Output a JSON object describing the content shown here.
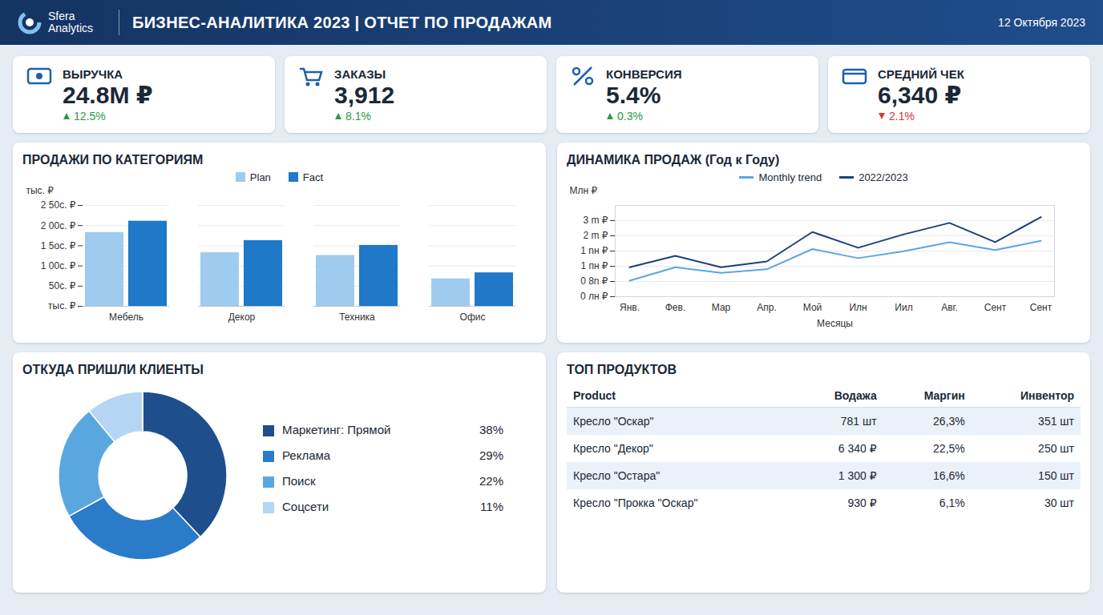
{
  "header": {
    "brand": "Sfera Analytics",
    "title": "БИЗНЕС-АНАЛИТИКА 2023 | ОТЧЕТ ПО ПРОДАЖАМ",
    "date": "12 Октября 2023"
  },
  "kpis": [
    {
      "label": "ВЫРУЧКА",
      "value": "24.8M ₽",
      "change": "12.5%",
      "direction": "up"
    },
    {
      "label": "ЗАКАЗЫ",
      "value": "3,912",
      "change": "8.1%",
      "direction": "up"
    },
    {
      "label": "КОНВЕРСИЯ",
      "value": "5.4%",
      "change": "0.3%",
      "direction": "up"
    },
    {
      "label": "СРЕДНИЙ ЧЕК",
      "value": "6,340 ₽",
      "change": "2.1%",
      "direction": "down"
    }
  ],
  "chart_data": [
    {
      "type": "bar",
      "title": "ПРОДАЖИ ПО КАТЕГОРИЯМ",
      "y_label": "тыс. ₽",
      "categories": [
        "Мебель",
        "Декор",
        "Техника",
        "Офис"
      ],
      "series": [
        {
          "name": "Plan",
          "color": "#9fcbef",
          "values": [
            183,
            133,
            126,
            68
          ]
        },
        {
          "name": "Fact",
          "color": "#1f78c8",
          "values": [
            211,
            163,
            151,
            83
          ]
        }
      ],
      "ylim": [
        0,
        250
      ],
      "yticks": [
        {
          "value": 0,
          "label": "тыс. ₽"
        },
        {
          "value": 50,
          "label": "50с. ₽"
        },
        {
          "value": 100,
          "label": "1 00с. ₽"
        },
        {
          "value": 150,
          "label": "1 5ос. ₽"
        },
        {
          "value": 200,
          "label": "2 00с. ₽"
        },
        {
          "value": 250,
          "label": "2 50с. ₽"
        }
      ],
      "grid": true,
      "legend": "top"
    },
    {
      "type": "line",
      "title": "ДИНАМИКА ПРОДАЖ (Год к Году)",
      "y_label": "Млн ₽",
      "x_label": "Месяцы",
      "categories": [
        "Янв.",
        "Фев.",
        "Мар",
        "Апр.",
        "Мой",
        "Илн",
        "Иил",
        "Авг.",
        "Сент",
        "Сент"
      ],
      "series": [
        {
          "name": "Monthly trend",
          "color": "#5aa7e0",
          "values": [
            0.63,
            1.16,
            0.94,
            1.08,
            1.88,
            1.52,
            1.79,
            2.15,
            1.84,
            2.2
          ]
        },
        {
          "name": "2022/2023",
          "color": "#1f3f7a",
          "values": [
            1.16,
            1.61,
            1.16,
            1.39,
            2.55,
            1.93,
            2.46,
            2.91,
            2.15,
            3.14
          ]
        }
      ],
      "ylim": [
        0,
        3.6
      ],
      "yticks": [
        {
          "value": 0,
          "label": "0 лн ₽"
        },
        {
          "value": 0.6,
          "label": "0 8n ₽"
        },
        {
          "value": 1.2,
          "label": "1 пн ₽"
        },
        {
          "value": 1.8,
          "label": "1 nн ₽"
        },
        {
          "value": 2.4,
          "label": "2 m ₽"
        },
        {
          "value": 3,
          "label": "3 m ₽"
        }
      ],
      "grid": true,
      "legend": "top"
    },
    {
      "type": "pie",
      "title": "ОТКУДА ПРИШЛИ КЛИЕНТЫ",
      "categories": [
        "Маркетинг: Прямой",
        "Реклама",
        "Поиск",
        "Соцсети"
      ],
      "values": [
        38,
        29,
        22,
        11
      ],
      "value_labels": [
        "38%",
        "29%",
        "22%",
        "11%"
      ],
      "colors": [
        "#1f4e8c",
        "#2a7bc8",
        "#5aa7e0",
        "#b5d6f2"
      ],
      "legend": "right"
    }
  ],
  "table": {
    "title": "ТОП ПРОДУКТОВ",
    "columns": [
      "Product",
      "Водажа",
      "Маргин",
      "Инвентор"
    ],
    "rows": [
      [
        "Кресло \"Оскар\"",
        "781 шт",
        "26,3%",
        "351 шт"
      ],
      [
        "Кресло \"Декор\"",
        "6 340 ₽",
        "22,5%",
        "250 шт"
      ],
      [
        "Кресло \"Остара\"",
        "1 300 ₽",
        "16,6%",
        "150 шт"
      ],
      [
        "Кресло \"Прокка \"Оскар\"",
        "930 ₽",
        "6,1%",
        "30 шт"
      ]
    ]
  }
}
